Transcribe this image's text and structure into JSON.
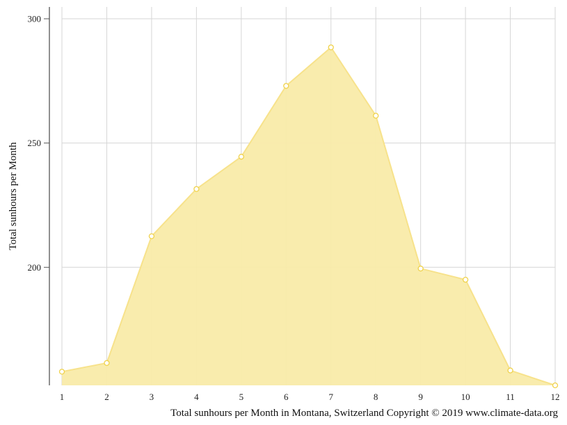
{
  "chart_data": {
    "type": "area",
    "ylabel": "Total sunhours per Month",
    "caption": "Total sunhours per Month in Montana, Switzerland Copyright © 2019 www.climate-data.org",
    "x": [
      1,
      2,
      3,
      4,
      5,
      6,
      7,
      8,
      9,
      10,
      11,
      12
    ],
    "x_tick_labels": [
      "1",
      "2",
      "3",
      "4",
      "5",
      "6",
      "7",
      "8",
      "9",
      "10",
      "11",
      "12"
    ],
    "y_ticks": [
      200,
      250,
      300
    ],
    "y_tick_labels": [
      "200",
      "250",
      "300"
    ],
    "ylim": [
      152.5,
      304
    ],
    "series": [
      {
        "values": [
          158,
          161.5,
          212.5,
          231.5,
          244.5,
          273,
          288.5,
          261,
          199.5,
          195,
          158.5,
          152.5
        ],
        "fill_color": "#f9eba9",
        "line_color": "#f7e28b",
        "marker_color": "#f0d24a"
      }
    ],
    "grid": true,
    "legend": "none"
  }
}
